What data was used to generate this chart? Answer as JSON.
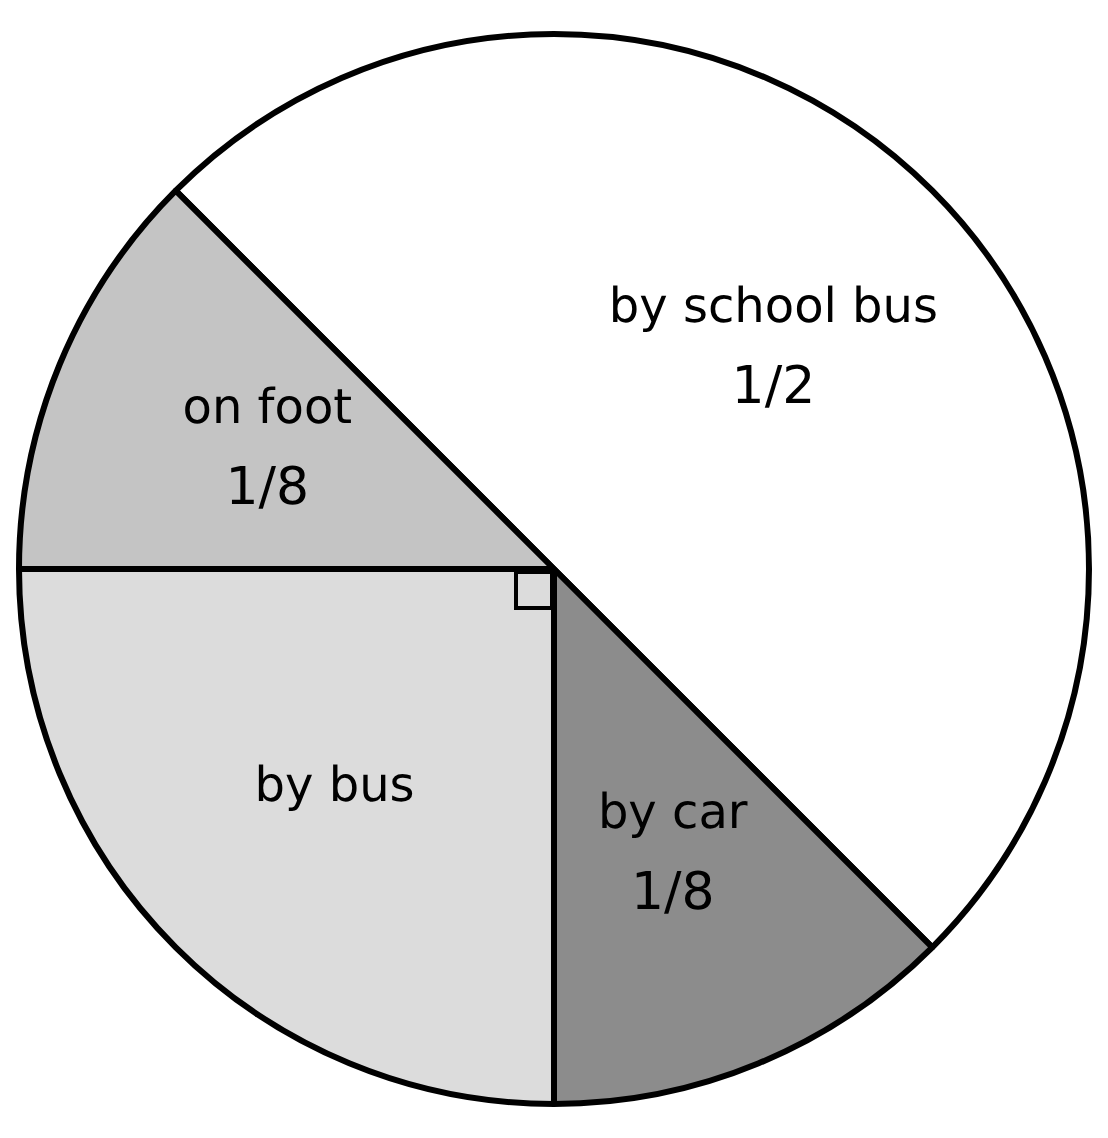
{
  "chart_data": {
    "type": "pie",
    "categories": [
      "by school bus",
      "by car",
      "by bus",
      "on foot"
    ],
    "values": [
      0.5,
      0.125,
      0.25,
      0.125
    ],
    "colors": [
      "#ffffff",
      "#8c8c8c",
      "#dcdcdc",
      "#c4c4c4"
    ],
    "value_labels": [
      "1/2",
      "1/8",
      null,
      "1/8"
    ],
    "legend": false
  }
}
